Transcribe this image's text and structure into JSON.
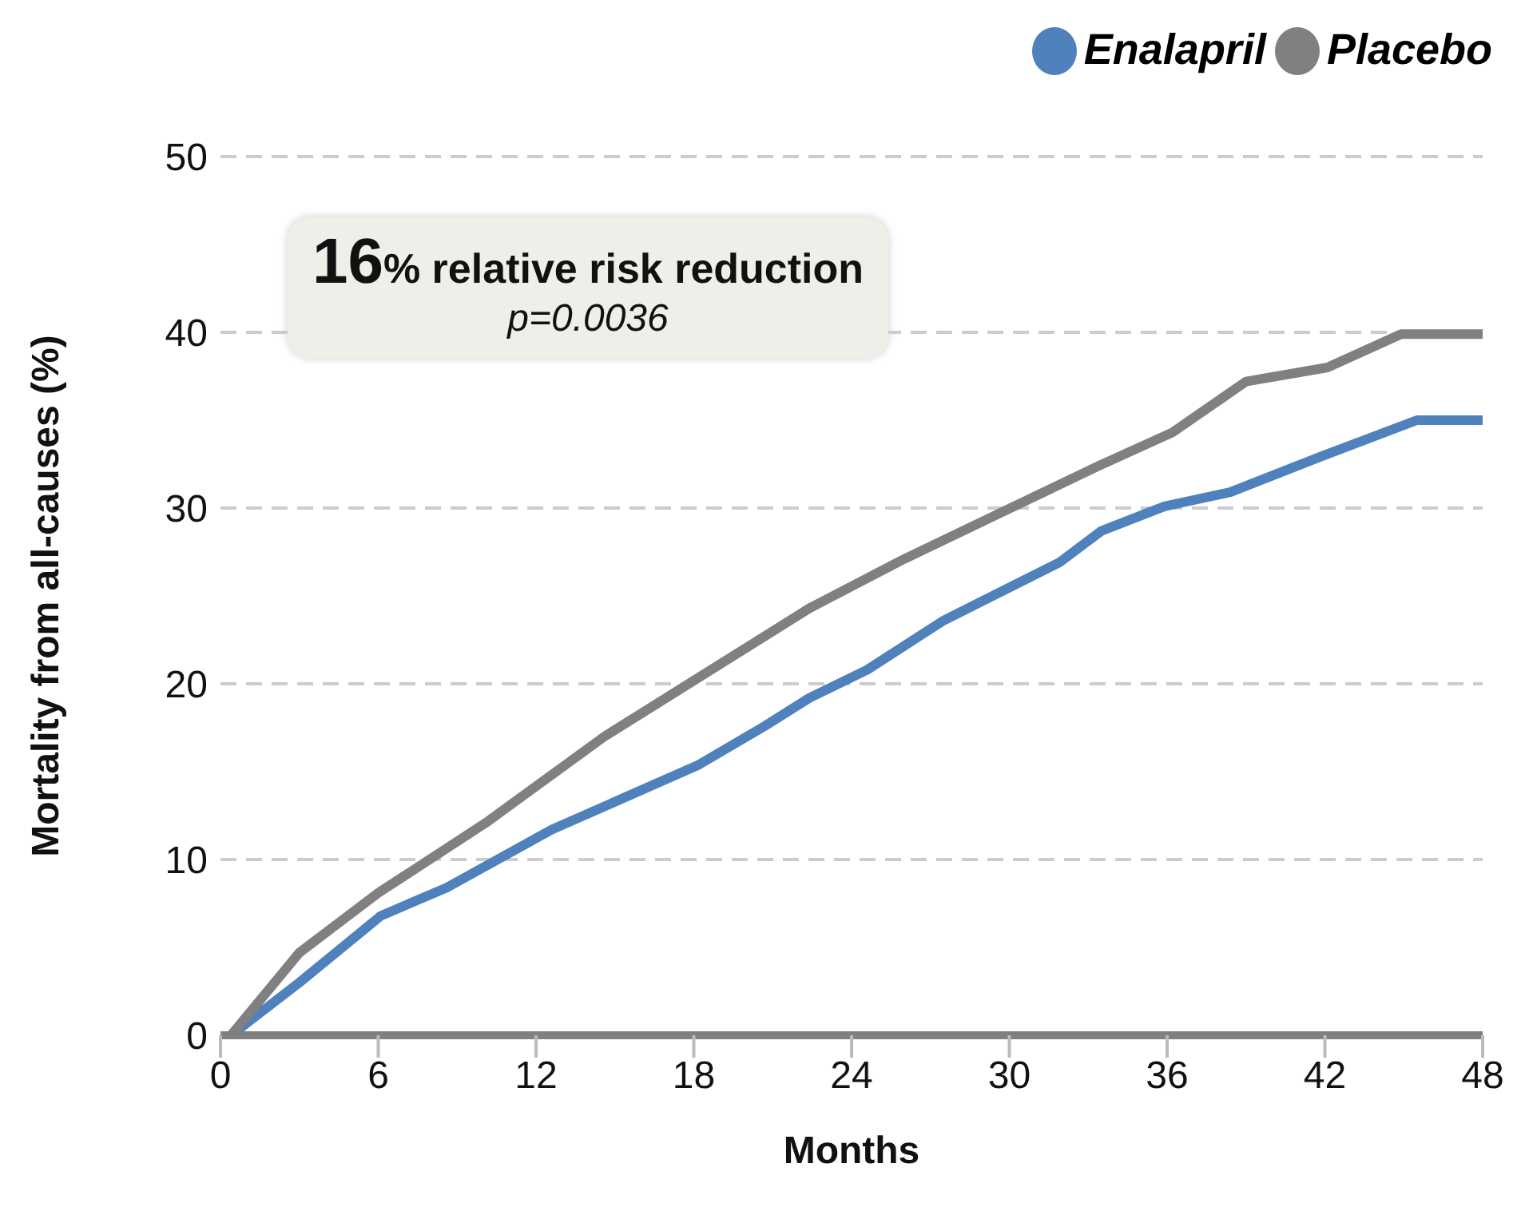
{
  "chart_data": {
    "type": "line",
    "xlabel": "Months",
    "ylabel": "Mortality from all-causes (%)",
    "xlim": [
      0,
      48
    ],
    "xticks": [
      0,
      6,
      12,
      18,
      24,
      30,
      36,
      42,
      48
    ],
    "ylim": [
      0,
      50
    ],
    "yticks": [
      0,
      10,
      20,
      30,
      40,
      50
    ],
    "grid": "y",
    "legend": "top right",
    "marker": "none",
    "line_style": "solid",
    "annotations": [
      "16% relative risk reduction",
      "p=0.0036"
    ],
    "series": [
      {
        "name": "Enalapril",
        "color": "#4f81bd",
        "x": [
          0.4,
          3,
          6.1,
          8.6,
          12.6,
          18.2,
          20.7,
          22.4,
          24.6,
          27.5,
          31.9,
          33.5,
          35.9,
          38.4,
          41.8,
          45.5,
          48
        ],
        "values": [
          0,
          3,
          6.8,
          8.4,
          11.7,
          15.4,
          17.6,
          19.2,
          20.8,
          23.6,
          26.9,
          28.7,
          30.1,
          30.9,
          32.9,
          35,
          35
        ]
      },
      {
        "name": "Placebo",
        "color": "#808080",
        "x": [
          0.4,
          3,
          6,
          10.1,
          14.6,
          22.4,
          26,
          33.4,
          36.2,
          39,
          42.1,
          44.9,
          48
        ],
        "values": [
          0,
          4.7,
          8.1,
          12.1,
          17,
          24.3,
          27.1,
          32.4,
          34.3,
          37.2,
          38,
          39.9,
          39.9
        ]
      }
    ]
  }
}
